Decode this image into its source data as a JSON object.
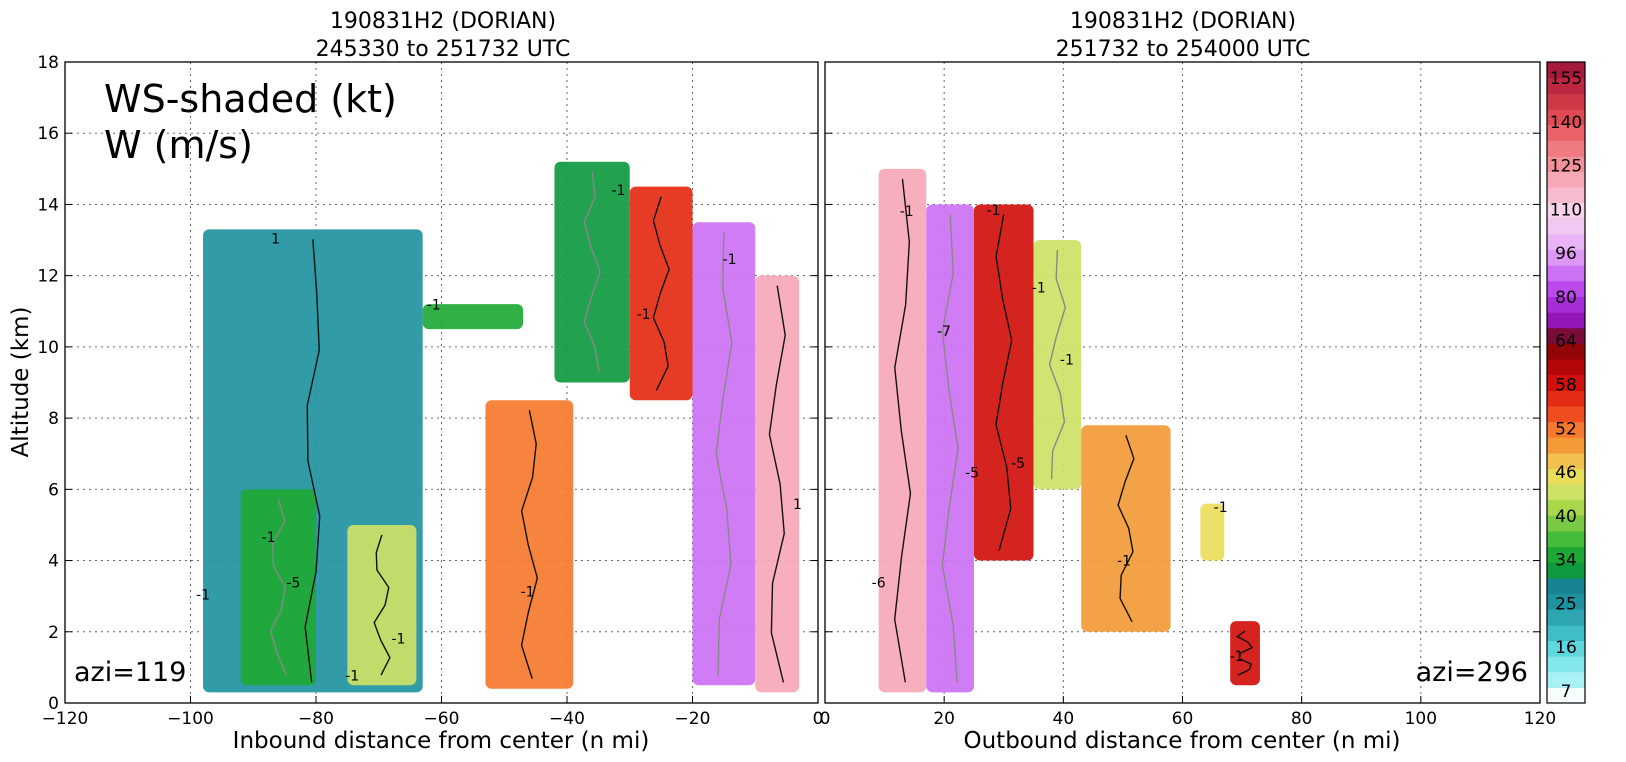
{
  "panels": [
    {
      "title_line1": "190831H2 (DORIAN)",
      "title_line2": "245330 to 251732 UTC",
      "xlabel": "Inbound distance from center (n mi)",
      "ylabel": "Altitude (km)",
      "azimuth_label": "azi=119",
      "annotation_line1": "WS-shaded (kt)",
      "annotation_line2": "W (m/s)"
    },
    {
      "title_line1": "190831H2 (DORIAN)",
      "title_line2": "251732 to 254000 UTC",
      "xlabel": "Outbound distance from center (n mi)",
      "azimuth_label": "azi=296"
    }
  ],
  "chart_data": [
    {
      "type": "heatmap",
      "title": "190831H2 (DORIAN) 245330 to 251732 UTC",
      "xlabel": "Inbound distance from center (n mi)",
      "ylabel": "Altitude (km)",
      "xlim": [
        -120,
        0
      ],
      "ylim": [
        0,
        18
      ],
      "xticks": [
        "−120",
        "−100",
        "−80",
        "−60",
        "−40",
        "−20",
        "0"
      ],
      "yticks": [
        "0",
        "2",
        "4",
        "6",
        "8",
        "10",
        "12",
        "14",
        "16",
        "18"
      ],
      "grid": true,
      "shaded_variable": "WS-shaded (kt)",
      "contour_variable": "W (m/s)",
      "contour_labels": [
        "-1",
        "-1",
        "-1",
        "-1",
        "-1",
        "-1",
        "-1",
        "-1",
        "1",
        "1",
        "-5",
        "-1"
      ],
      "regions": [
        {
          "x": [
            -98,
            -63
          ],
          "y": [
            0.3,
            13.3
          ],
          "ws_kt": 28
        },
        {
          "x": [
            -92,
            -80
          ],
          "y": [
            0.5,
            6
          ],
          "ws_kt": 36
        },
        {
          "x": [
            -75,
            -64
          ],
          "y": [
            0.5,
            5
          ],
          "ws_kt": 44
        },
        {
          "x": [
            -63,
            -47
          ],
          "y": [
            10.5,
            11.2
          ],
          "ws_kt": 36
        },
        {
          "x": [
            -53,
            -39
          ],
          "y": [
            0.4,
            8.5
          ],
          "ws_kt": 52
        },
        {
          "x": [
            -42,
            -30
          ],
          "y": [
            9,
            15.2
          ],
          "ws_kt": 34
        },
        {
          "x": [
            -30,
            -20
          ],
          "y": [
            8.5,
            14.5
          ],
          "ws_kt": 56
        },
        {
          "x": [
            -20,
            -10
          ],
          "y": [
            0.5,
            13.5
          ],
          "ws_kt": 80
        },
        {
          "x": [
            -10,
            -3
          ],
          "y": [
            0.3,
            12
          ],
          "ws_kt": 110
        }
      ],
      "azimuth": "azi=119"
    },
    {
      "type": "heatmap",
      "title": "190831H2 (DORIAN) 251732 to 254000 UTC",
      "xlabel": "Outbound distance from center (n mi)",
      "xlim": [
        0,
        120
      ],
      "ylim": [
        0,
        18
      ],
      "xticks": [
        "0",
        "20",
        "40",
        "60",
        "80",
        "100",
        "120"
      ],
      "yticks": [
        "0",
        "2",
        "4",
        "6",
        "8",
        "10",
        "12",
        "14",
        "16",
        "18"
      ],
      "grid": true,
      "contour_labels": [
        "-6",
        "-7",
        "-5",
        "-1",
        "-1",
        "-1",
        "-1",
        "-1",
        "-5",
        "-1",
        "-1"
      ],
      "regions": [
        {
          "x": [
            9,
            17
          ],
          "y": [
            0.3,
            15
          ],
          "ws_kt": 110
        },
        {
          "x": [
            17,
            25
          ],
          "y": [
            0.3,
            14
          ],
          "ws_kt": 80
        },
        {
          "x": [
            25,
            35
          ],
          "y": [
            4,
            14
          ],
          "ws_kt": 58
        },
        {
          "x": [
            35,
            43
          ],
          "y": [
            6,
            13
          ],
          "ws_kt": 44
        },
        {
          "x": [
            43,
            58
          ],
          "y": [
            2,
            7.8
          ],
          "ws_kt": 50
        },
        {
          "x": [
            63,
            67
          ],
          "y": [
            4,
            5.6
          ],
          "ws_kt": 46
        },
        {
          "x": [
            68,
            73
          ],
          "y": [
            0.5,
            2.3
          ],
          "ws_kt": 58
        }
      ],
      "azimuth": "azi=296"
    }
  ],
  "colorbar": {
    "labels": [
      "155",
      "140",
      "125",
      "110",
      "96",
      "80",
      "64",
      "58",
      "52",
      "46",
      "40",
      "34",
      "25",
      "16",
      "7"
    ],
    "colors": [
      "#f7fefe",
      "#a8f1f4",
      "#84e7ec",
      "#5fd7de",
      "#3fbec8",
      "#2ea6b2",
      "#1f929f",
      "#178591",
      "#0f9a3f",
      "#1ea936",
      "#45bb3a",
      "#7ac944",
      "#a8d84a",
      "#cde265",
      "#eadd5b",
      "#f2c04e",
      "#f39a37",
      "#f57a2e",
      "#f04d20",
      "#e42b14",
      "#d1110d",
      "#b4050a",
      "#930407",
      "#7b0b38",
      "#9317b6",
      "#a72dd6",
      "#bb49ee",
      "#cc71f3",
      "#dd97f4",
      "#e9b4f5",
      "#f2c8f3",
      "#f8d2ea",
      "#f8bccf",
      "#f7a8b7",
      "#f39198",
      "#ef7a80",
      "#ea6168",
      "#e14a55",
      "#cf3747",
      "#bd2741",
      "#a51a3d"
    ]
  }
}
